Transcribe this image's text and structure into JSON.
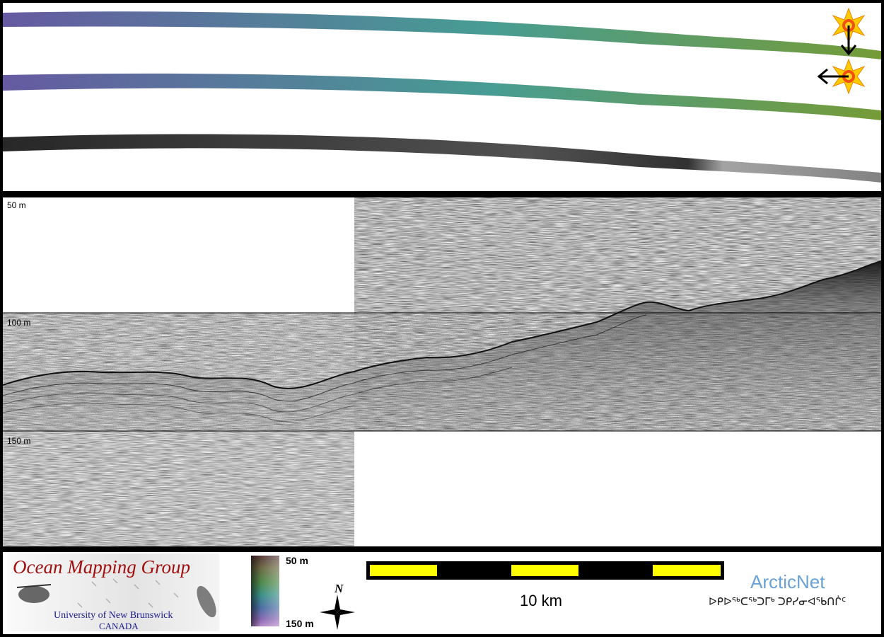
{
  "profile": {
    "depth_labels": [
      "50 m",
      "100 m",
      "150 m"
    ]
  },
  "legend": {
    "colorbar_top": "50 m",
    "colorbar_bottom": "150 m",
    "north_label": "N"
  },
  "logo": {
    "title": "Ocean Mapping Group",
    "university": "University of New Brunswick",
    "country": "CANADA",
    "title_color": "#a01010",
    "text_color": "#1a1a8c"
  },
  "scalebar": {
    "label": "10 km",
    "fill_color": "#ffff00"
  },
  "arcticnet": {
    "name": "ArcticNet",
    "subtitle": "ᐅᑭᐅᖅᑕᖅᑐᒥᒃ ᑐᑭᓯᓂᐊᖃᑎᒌᑦ",
    "color": "#6aa2d8"
  },
  "swath": {
    "ramp_start": "#6a5ea8",
    "ramp_mid": "#4aa39a",
    "ramp_end": "#7aa23a"
  }
}
